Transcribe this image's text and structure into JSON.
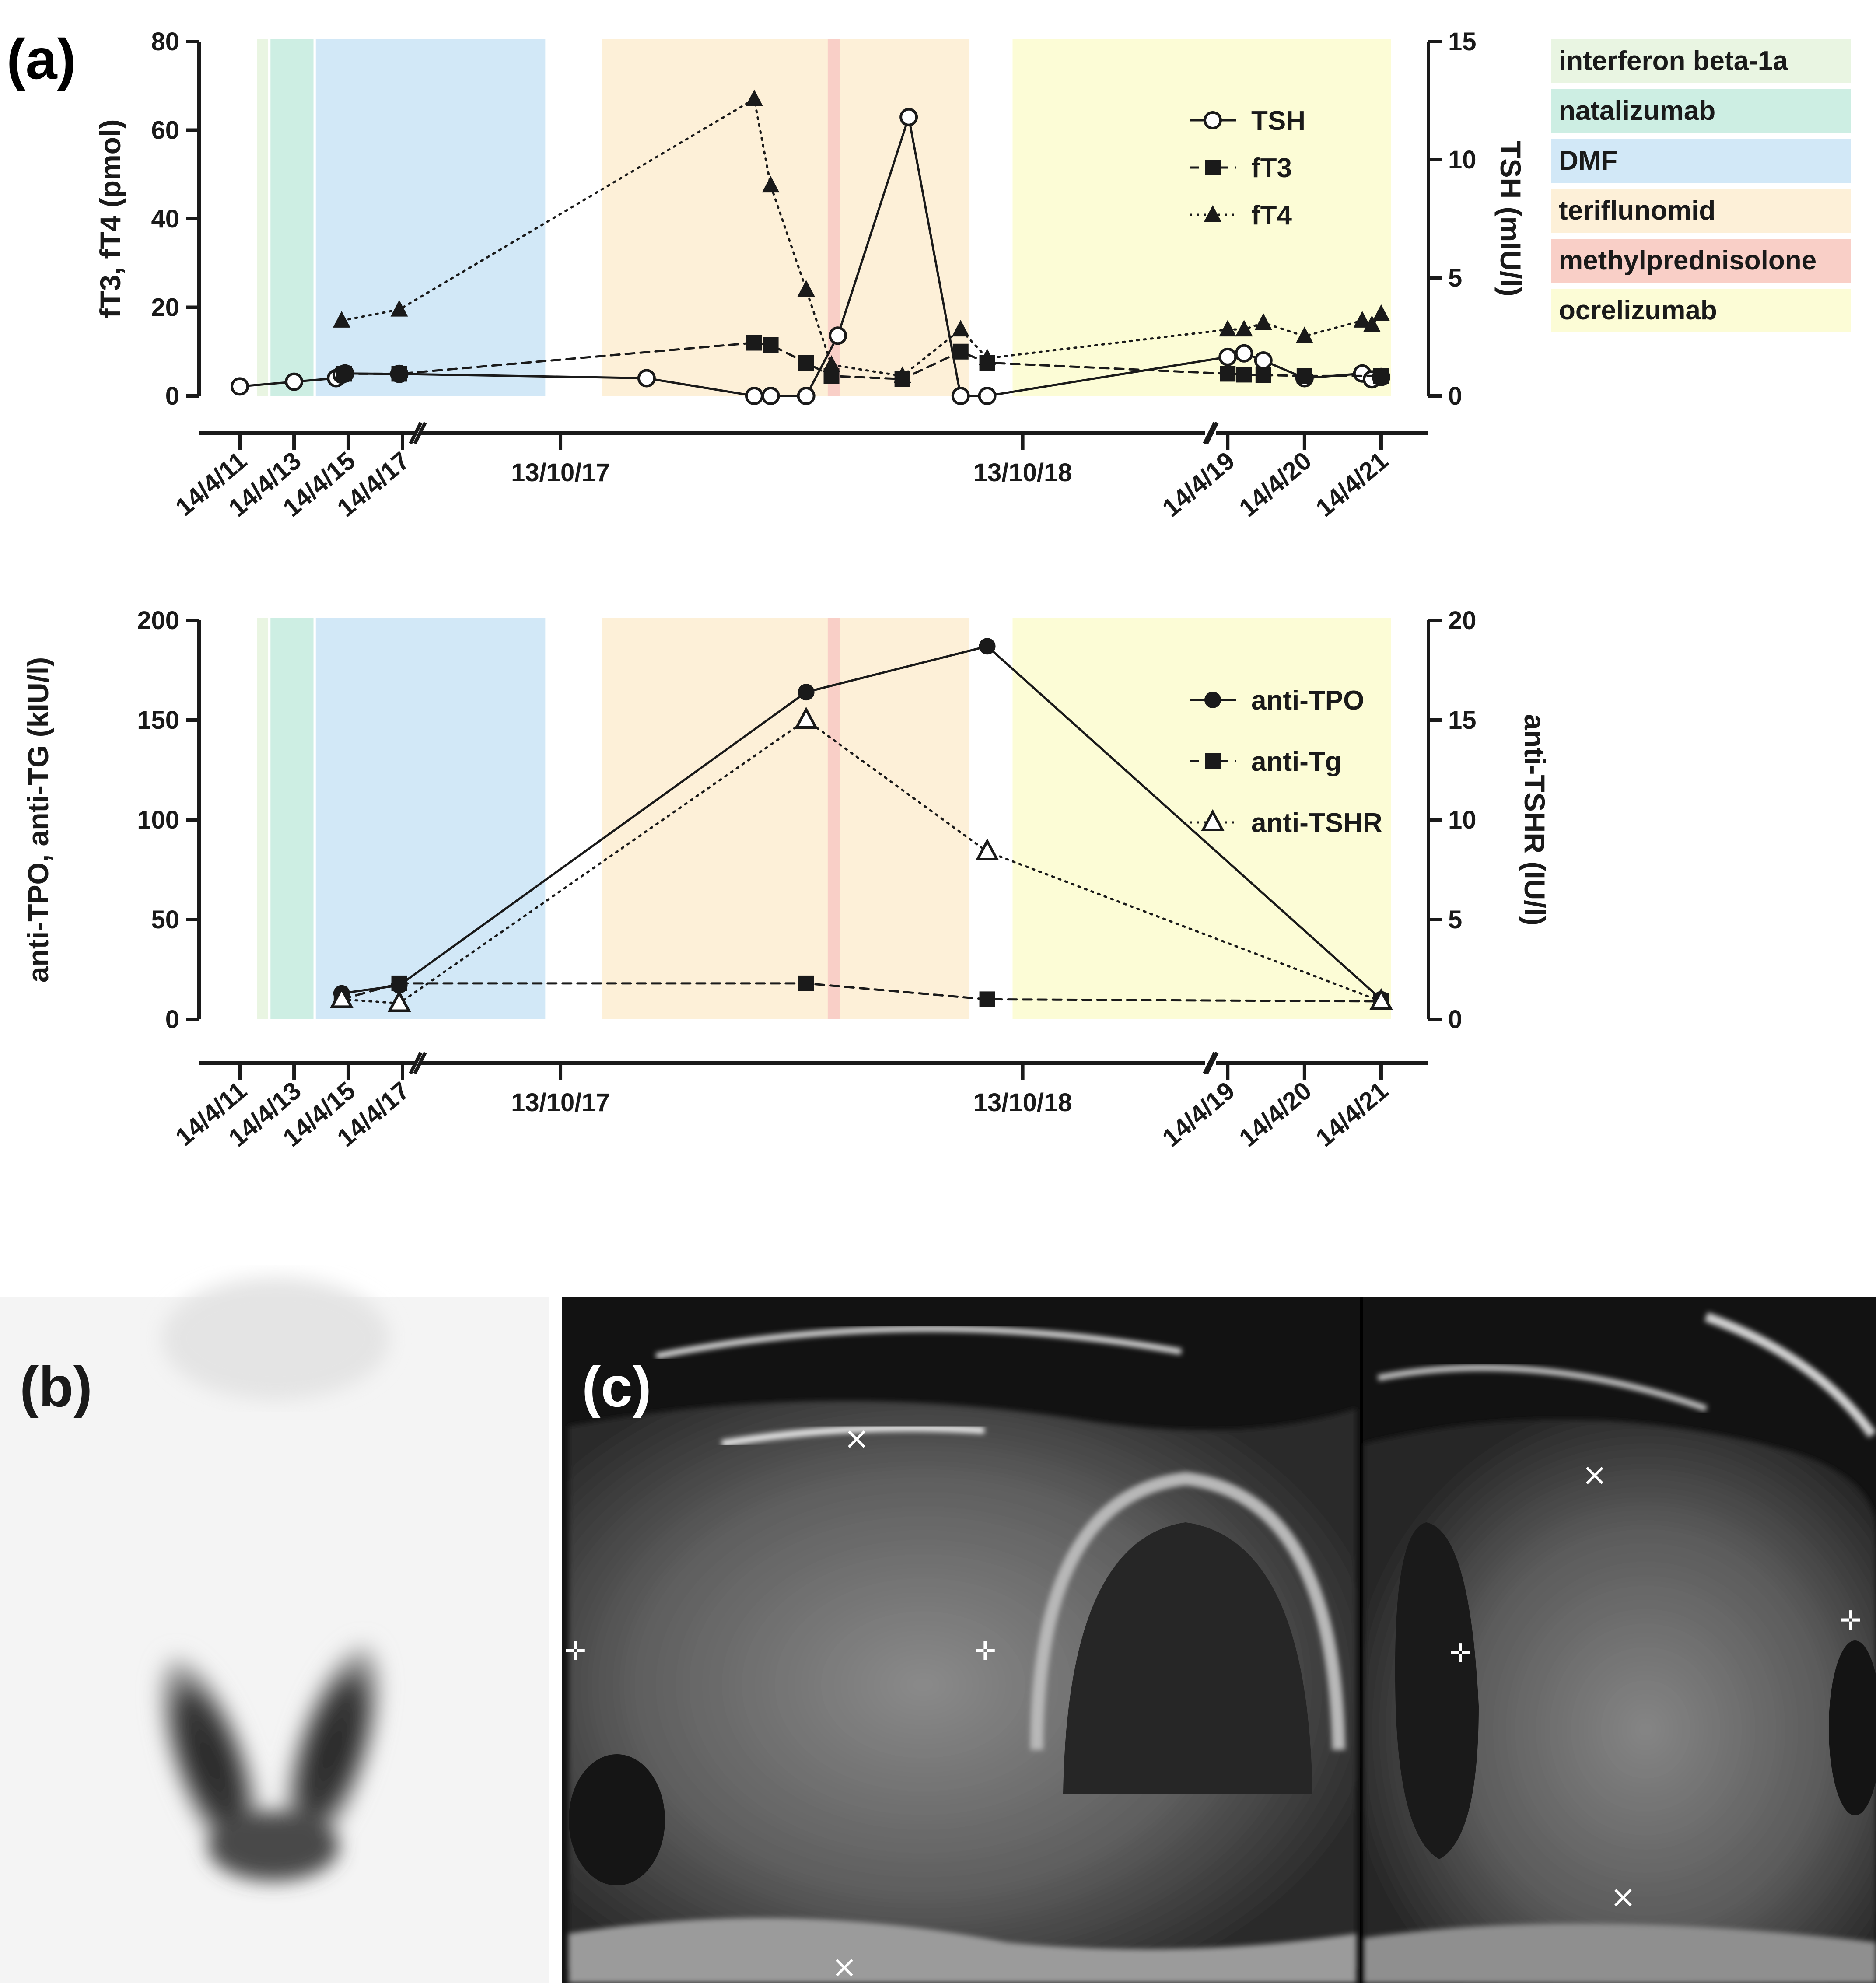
{
  "figure": {
    "panel_labels": [
      "(a)",
      "(b)",
      "(c)"
    ]
  },
  "treatments": [
    {
      "label": "interferon beta-1a",
      "color": "#e9f5e2"
    },
    {
      "label": "natalizumab",
      "color": "#cdeee3"
    },
    {
      "label": "DMF",
      "color": "#d2e8f7"
    },
    {
      "label": "teriflunomid",
      "color": "#fdf0d8"
    },
    {
      "label": "methylprednisolone",
      "color": "#f9cfc7"
    },
    {
      "label": "ocrelizumab",
      "color": "#fcfcd6"
    }
  ],
  "treatment_periods": [
    {
      "treatment": "interferon beta-1a",
      "start": "2011-12-01",
      "end": "2012-05-01"
    },
    {
      "treatment": "natalizumab",
      "start": "2012-06-01",
      "end": "2014-01-01"
    },
    {
      "treatment": "DMF",
      "start": "2014-02-01",
      "end": "2017-10-01"
    },
    {
      "treatment": "teriflunomid",
      "start": "2017-11-15",
      "end": "2018-09-01"
    },
    {
      "treatment": "methylprednisolone",
      "start": "2018-05-12",
      "end": "2018-05-22"
    },
    {
      "treatment": "ocrelizumab",
      "start": "2018-10-05",
      "end": "2021-06-01"
    }
  ],
  "x_axis": {
    "tick_labels": [
      "14/4/11",
      "14/4/13",
      "14/4/15",
      "14/4/17",
      "13/10/17",
      "13/10/18",
      "14/4/19",
      "14/4/20",
      "14/4/21"
    ]
  },
  "chart_data": [
    {
      "type": "line",
      "panel": "(a)",
      "ylabel_left": "fT3, fT4 (pmol)",
      "ylabel_right": "TSH (mIU/l)",
      "ylim_left": [
        0,
        80
      ],
      "ylim_right": [
        0,
        15
      ],
      "yticks_left": [
        "0",
        "20",
        "40",
        "60",
        "80"
      ],
      "yticks_right": [
        "0",
        "5",
        "10",
        "15"
      ],
      "legend_position": "top-right",
      "series": [
        {
          "name": "TSH",
          "axis": "right",
          "marker": "open-circle",
          "line": "solid",
          "points": [
            [
              "2011-04-14",
              0.4
            ],
            [
              "2013-04-14",
              0.6
            ],
            [
              "2014-11-01",
              0.75
            ],
            [
              "2015-01-15",
              0.9
            ],
            [
              "2015-03-01",
              0.95
            ],
            [
              "2017-03-01",
              0.93
            ],
            [
              "2017-12-20",
              0.75
            ],
            [
              "2018-03-15",
              0.0
            ],
            [
              "2018-03-28",
              0.0
            ],
            [
              "2018-04-25",
              0.0
            ],
            [
              "2018-05-20",
              2.55
            ],
            [
              "2018-07-15",
              11.8
            ],
            [
              "2018-08-25",
              0.0
            ],
            [
              "2018-09-15",
              0.0
            ],
            [
              "2019-04-14",
              1.65
            ],
            [
              "2019-07-01",
              1.8
            ],
            [
              "2019-10-01",
              1.5
            ],
            [
              "2020-04-14",
              0.75
            ],
            [
              "2021-01-14",
              0.95
            ],
            [
              "2021-03-01",
              0.7
            ],
            [
              "2021-04-14",
              0.8
            ]
          ]
        },
        {
          "name": "fT3",
          "axis": "left",
          "marker": "filled-square",
          "line": "dashed",
          "points": [
            [
              "2015-02-15",
              5.0
            ],
            [
              "2017-03-01",
              5.0
            ],
            [
              "2018-03-15",
              12.0
            ],
            [
              "2018-03-28",
              11.5
            ],
            [
              "2018-04-25",
              7.5
            ],
            [
              "2018-05-15",
              4.5
            ],
            [
              "2018-07-10",
              3.8
            ],
            [
              "2018-08-25",
              10.0
            ],
            [
              "2018-09-15",
              7.5
            ],
            [
              "2019-04-14",
              5.0
            ],
            [
              "2019-07-01",
              4.8
            ],
            [
              "2019-10-01",
              4.7
            ],
            [
              "2020-04-14",
              4.5
            ],
            [
              "2021-04-14",
              4.5
            ]
          ]
        },
        {
          "name": "fT4",
          "axis": "left",
          "marker": "filled-triangle",
          "line": "dotted",
          "points": [
            [
              "2015-01-15",
              17.0
            ],
            [
              "2017-03-01",
              19.5
            ],
            [
              "2018-03-15",
              67.0
            ],
            [
              "2018-03-28",
              47.5
            ],
            [
              "2018-04-25",
              24.0
            ],
            [
              "2018-05-15",
              7.0
            ],
            [
              "2018-07-10",
              4.5
            ],
            [
              "2018-08-25",
              15.0
            ],
            [
              "2018-09-15",
              8.5
            ],
            [
              "2019-04-14",
              15.0
            ],
            [
              "2019-07-01",
              15.0
            ],
            [
              "2019-10-01",
              16.5
            ],
            [
              "2020-04-14",
              13.5
            ],
            [
              "2021-01-14",
              17.0
            ],
            [
              "2021-03-01",
              16.0
            ],
            [
              "2021-04-14",
              18.5
            ]
          ]
        }
      ]
    },
    {
      "type": "line",
      "panel": "(a)",
      "ylabel_left": "anti-TPO, anti-TG (kIU/l)",
      "ylabel_right": "anti-TSHR (IU/l)",
      "ylim_left": [
        0,
        200
      ],
      "ylim_right": [
        0,
        20
      ],
      "yticks_left": [
        "0",
        "50",
        "100",
        "150",
        "200"
      ],
      "yticks_right": [
        "0",
        "5",
        "10",
        "15",
        "20"
      ],
      "legend_position": "top-right",
      "series": [
        {
          "name": "anti-TPO",
          "axis": "left",
          "marker": "filled-circle",
          "line": "solid",
          "points": [
            [
              "2015-01-15",
              13.0
            ],
            [
              "2017-03-01",
              17.0
            ],
            [
              "2018-04-25",
              164.0
            ],
            [
              "2018-09-15",
              187.0
            ],
            [
              "2021-04-14",
              10.0
            ]
          ]
        },
        {
          "name": "anti-Tg",
          "axis": "left",
          "marker": "filled-square",
          "line": "dashed",
          "points": [
            [
              "2015-01-15",
              10.0
            ],
            [
              "2017-03-01",
              18.0
            ],
            [
              "2018-04-25",
              18.0
            ],
            [
              "2018-09-15",
              10.0
            ],
            [
              "2021-04-14",
              9.0
            ]
          ]
        },
        {
          "name": "anti-TSHR",
          "axis": "right",
          "marker": "open-triangle",
          "line": "dotted",
          "points": [
            [
              "2015-01-15",
              1.0
            ],
            [
              "2017-03-01",
              0.8
            ],
            [
              "2018-04-25",
              15.0
            ],
            [
              "2018-09-15",
              8.4
            ],
            [
              "2021-04-14",
              0.9
            ]
          ]
        }
      ]
    }
  ]
}
